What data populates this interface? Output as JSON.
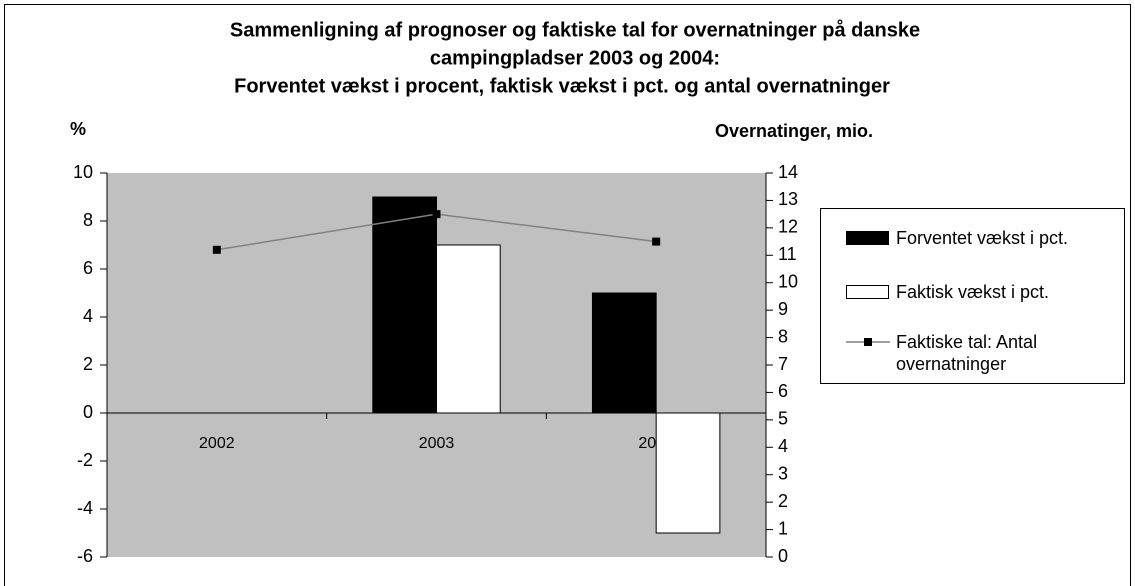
{
  "chart_data": {
    "type": "bar",
    "title": [
      "Sammenligning af prognoser og faktiske tal for overnatninger på danske",
      "campingpladser 2003 og 2004:"
    ],
    "subtitle": "Forventet vækst i procent, faktisk vækst i pct. og antal overnatninger",
    "y_label": "%",
    "y2_label": "Overnatinger, mio.",
    "categories": [
      "2002",
      "2003",
      "2004"
    ],
    "series": [
      {
        "name": "Forventet vækst i pct.",
        "type": "bar",
        "color": "#000000",
        "values": [
          null,
          9,
          5
        ]
      },
      {
        "name": "Faktisk vækst i pct.",
        "type": "bar",
        "color": "#ffffff",
        "values": [
          null,
          7,
          -5
        ]
      },
      {
        "name": "Faktiske tal: Antal overnatninger",
        "type": "line",
        "axis": "y2",
        "color": "#808080",
        "values": [
          11.2,
          12.5,
          11.5
        ]
      }
    ],
    "ylim": [
      -6,
      10
    ],
    "yticks": [
      -6,
      -4,
      -2,
      0,
      2,
      4,
      6,
      8,
      10
    ],
    "y2lim": [
      0,
      14
    ],
    "y2ticks": [
      0,
      1,
      2,
      3,
      4,
      5,
      6,
      7,
      8,
      9,
      10,
      11,
      12,
      13,
      14
    ],
    "grid": false,
    "legend": "right",
    "plot_color": "#c0c0c0"
  }
}
